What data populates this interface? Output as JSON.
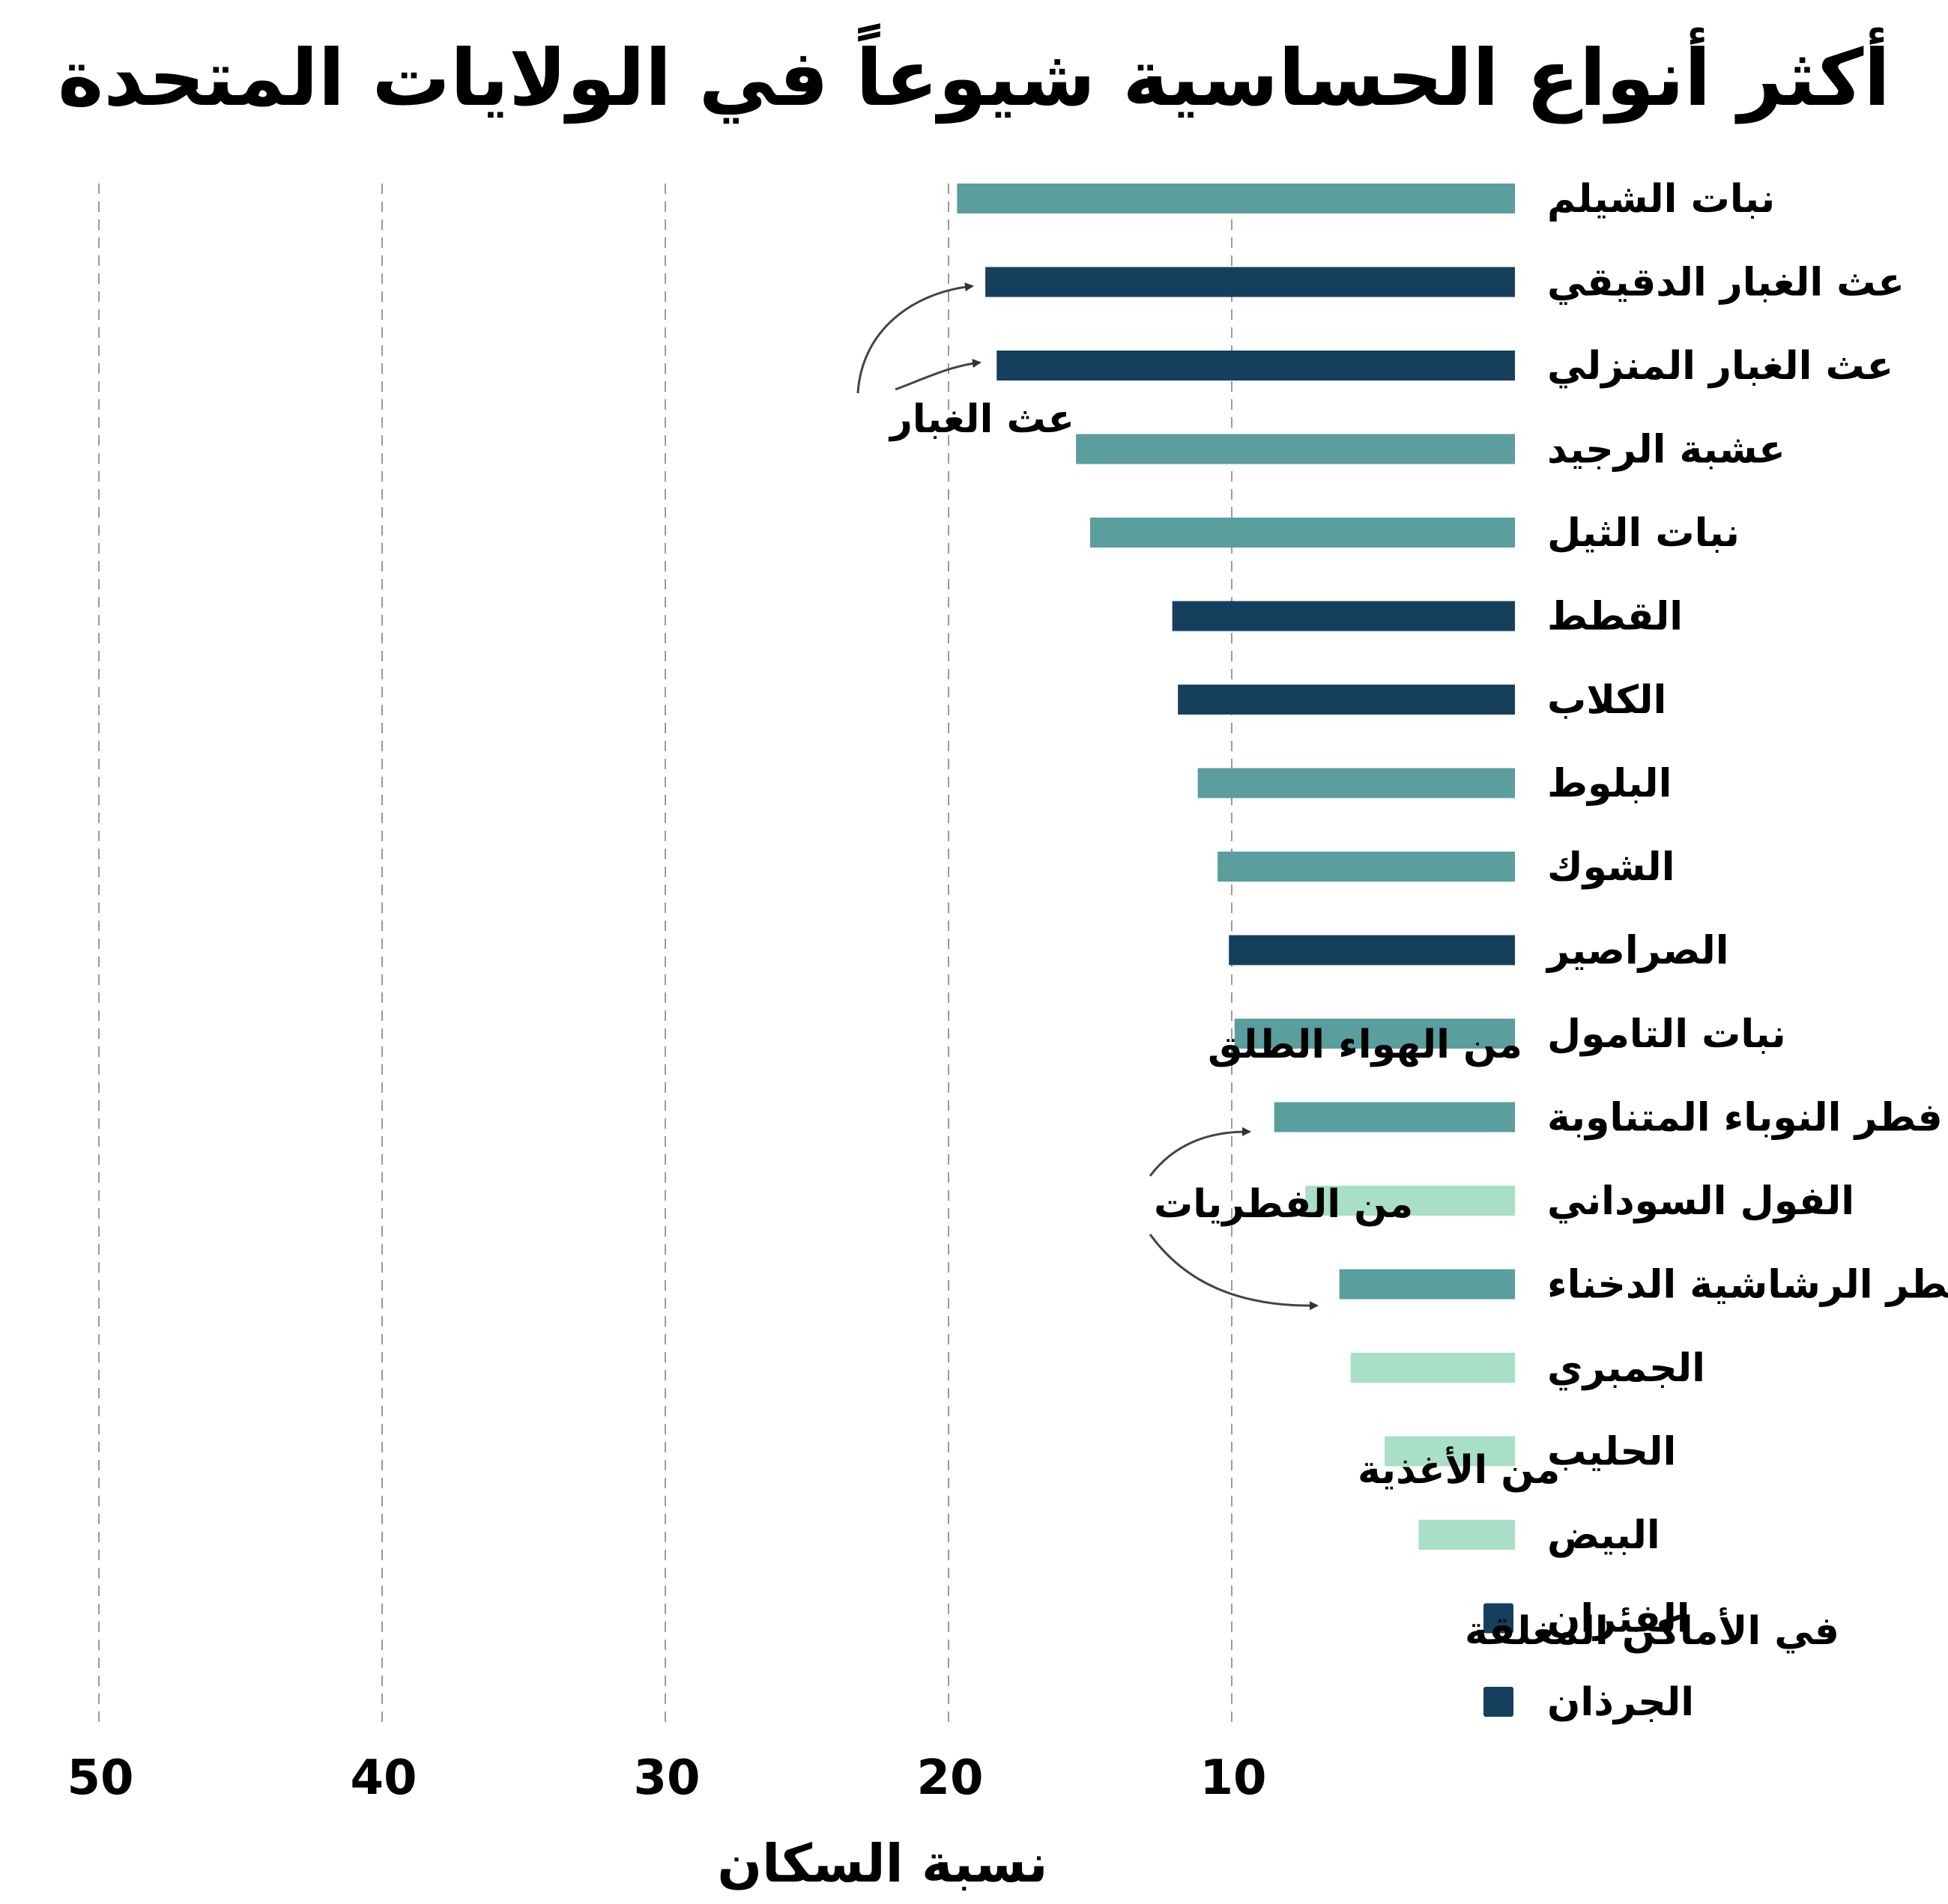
{
  "chart_data": {
    "type": "bar",
    "orientation": "horizontal",
    "title": "أكثر أنواع الحساسية شيوعاً في الولايات المتحدة",
    "xlabel": "نسبة السكان",
    "xlim": [
      0,
      50
    ],
    "x_ticks": [
      50,
      40,
      30,
      20,
      10
    ],
    "x_axis_reversed": true,
    "grid": "vertical-dashed",
    "categories": [
      "نبات الشيلم",
      "عث الغبار الدقيقي",
      "عث الغبار المنزلي",
      "عشبة الرجيد",
      "نبات الثيل",
      "القطط",
      "الكلاب",
      "البلوط",
      "الشوك",
      "الصراصير",
      "نبات التامول",
      "فطر النوباء المتناوبة",
      "الفول السوداني",
      "فطر الرشاشية الدخناء",
      "الجمبري",
      "الحليب",
      "البيض",
      "الفئران",
      "الجرذان"
    ],
    "values": [
      19.7,
      18.7,
      18.3,
      15.5,
      15.0,
      12.1,
      11.9,
      11.2,
      10.5,
      10.1,
      9.9,
      8.5,
      7.4,
      6.2,
      5.8,
      4.6,
      3.4,
      0,
      0
    ],
    "groups": [
      "outdoor",
      "indoor",
      "indoor",
      "outdoor",
      "outdoor",
      "indoor",
      "indoor",
      "outdoor",
      "outdoor",
      "indoor",
      "outdoor",
      "fungal",
      "food",
      "fungal",
      "food",
      "food",
      "food",
      "indoor",
      "indoor"
    ],
    "group_colors": {
      "outdoor": "#5a9e9e",
      "indoor": "#153f5c",
      "fungal": "#5a9e9e",
      "food": "#a8dfc6"
    },
    "annotations": {
      "dust_mites": "عث الغبار",
      "outdoor": "من الهواء الطلق",
      "fungal": "من الفطريات",
      "food": "من الأغذية",
      "indoor": "في  الأماكن المغلقة"
    }
  }
}
